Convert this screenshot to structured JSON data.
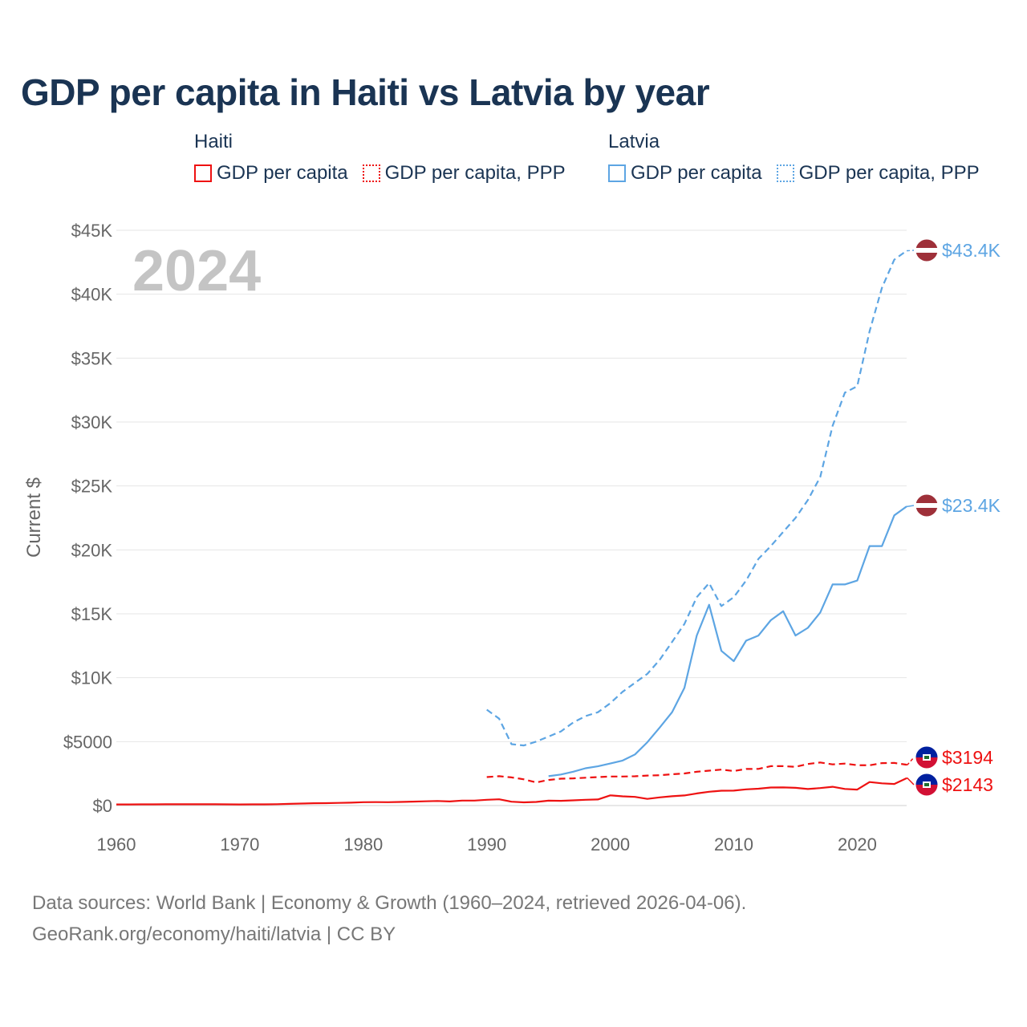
{
  "title": "GDP per capita in Haiti vs Latvia by year",
  "legend": {
    "haiti": {
      "country": "Haiti",
      "gdp": "GDP per capita",
      "ppp": "GDP per capita, PPP",
      "color": "#ee1111"
    },
    "latvia": {
      "country": "Latvia",
      "gdp": "GDP per capita",
      "ppp": "GDP per capita, PPP",
      "color": "#5da5e3"
    }
  },
  "source": {
    "line1": "Data sources: World Bank | Economy & Growth (1960–2024, retrieved 2026-04-06).",
    "line2": "GeoRank.org/economy/haiti/latvia | CC BY"
  },
  "chart_data": {
    "type": "line",
    "year_label": "2024",
    "ylabel": "Current $",
    "xlim": [
      1960,
      2024
    ],
    "ylim": [
      0,
      45000
    ],
    "x_ticks": [
      1960,
      1970,
      1980,
      1990,
      2000,
      2010,
      2020
    ],
    "x_tick_labels": [
      "1960",
      "1970",
      "1980",
      "1990",
      "2000",
      "2010",
      "2020"
    ],
    "y_ticks": [
      0,
      5000,
      10000,
      15000,
      20000,
      25000,
      30000,
      35000,
      40000,
      45000
    ],
    "y_tick_labels": [
      "$0",
      "$5000",
      "$10K",
      "$15K",
      "$20K",
      "$25K",
      "$30K",
      "$35K",
      "$40K",
      "$45K"
    ],
    "end_labels": {
      "latvia_ppp": "$43.4K",
      "latvia_gdp": "$23.4K",
      "haiti_ppp": "$3194",
      "haiti_gdp": "$2143"
    },
    "series": [
      {
        "name": "Haiti GDP per capita",
        "country": "haiti",
        "style": "solid",
        "color": "#ee1111",
        "start_year": 1960,
        "values": [
          90,
          90,
          95,
          97,
          98,
          100,
          100,
          100,
          98,
          95,
          90,
          92,
          95,
          105,
          130,
          155,
          180,
          190,
          205,
          225,
          265,
          270,
          265,
          280,
          310,
          330,
          360,
          320,
          390,
          390,
          450,
          490,
          300,
          250,
          280,
          380,
          370,
          410,
          450,
          480,
          800,
          720,
          680,
          520,
          640,
          730,
          790,
          950,
          1080,
          1160,
          1170,
          1270,
          1320,
          1410,
          1420,
          1390,
          1290,
          1370,
          1470,
          1300,
          1250,
          1840,
          1740,
          1690,
          2143
        ]
      },
      {
        "name": "Haiti GDP per capita, PPP",
        "country": "haiti",
        "style": "dashed",
        "color": "#ee1111",
        "start_year": 1990,
        "values": [
          2230,
          2300,
          2200,
          2050,
          1810,
          2000,
          2100,
          2130,
          2180,
          2230,
          2270,
          2270,
          2290,
          2350,
          2370,
          2450,
          2510,
          2640,
          2730,
          2810,
          2700,
          2860,
          2870,
          3080,
          3080,
          3030,
          3250,
          3370,
          3220,
          3280,
          3160,
          3150,
          3320,
          3330,
          3194
        ]
      },
      {
        "name": "Latvia GDP per capita",
        "country": "latvia",
        "style": "solid",
        "color": "#5da5e3",
        "start_year": 1995,
        "values": [
          2300,
          2430,
          2650,
          2920,
          3070,
          3290,
          3520,
          4000,
          4950,
          6100,
          7300,
          9200,
          13300,
          15700,
          12100,
          11300,
          12900,
          13300,
          14500,
          15200,
          13300,
          13900,
          15100,
          17300,
          17300,
          17600,
          20300,
          20300,
          22700,
          23400
        ]
      },
      {
        "name": "Latvia GDP per capita, PPP",
        "country": "latvia",
        "style": "dashed",
        "color": "#5da5e3",
        "start_year": 1990,
        "values": [
          7500,
          6800,
          4800,
          4700,
          5000,
          5400,
          5800,
          6500,
          7000,
          7300,
          8000,
          8900,
          9600,
          10300,
          11400,
          12800,
          14200,
          16300,
          17400,
          15600,
          16300,
          17600,
          19300,
          20300,
          21400,
          22500,
          23900,
          25700,
          29700,
          32300,
          32800,
          37100,
          40500,
          42700,
          43400
        ]
      }
    ]
  }
}
